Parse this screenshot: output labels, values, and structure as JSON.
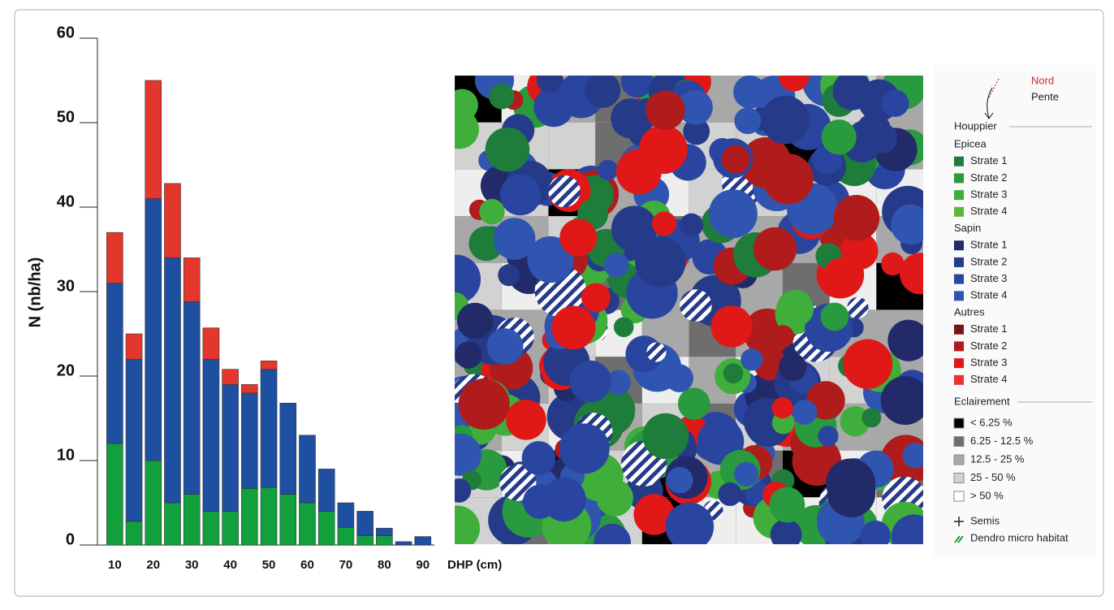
{
  "chart_data": {
    "type": "stacked-bar",
    "y_label": "N (nb/ha)",
    "x_label": "DHP (cm)",
    "x": [
      10,
      15,
      20,
      25,
      30,
      35,
      40,
      45,
      50,
      55,
      60,
      65,
      70,
      75,
      80,
      85,
      90
    ],
    "series": [
      {
        "color": "#12a03c",
        "values": [
          12,
          2.8,
          10,
          5,
          6,
          4,
          4,
          6.7,
          6.8,
          6,
          5,
          4,
          2.1,
          1.1,
          1.1,
          0,
          0
        ]
      },
      {
        "color": "#1f4fa0",
        "values": [
          19,
          19.2,
          31,
          29,
          22.8,
          18,
          15,
          11.3,
          14,
          10.8,
          8,
          5,
          2.9,
          2.9,
          0.9,
          0.4,
          1
        ]
      },
      {
        "color": "#e3362d",
        "values": [
          6,
          3,
          14,
          8.8,
          5.2,
          3.7,
          1.8,
          1,
          1,
          0,
          0,
          0,
          0,
          0,
          0,
          0,
          0
        ]
      }
    ],
    "xlim": [
      5.5,
      93
    ],
    "xticks": [
      10,
      20,
      30,
      40,
      50,
      60,
      70,
      80,
      90
    ],
    "ylim": [
      0,
      60
    ],
    "yticks": [
      0,
      10,
      20,
      30,
      40,
      50,
      60
    ]
  },
  "legend": {
    "north": "Nord",
    "slope": "Pente",
    "crown": {
      "title": "Houppier",
      "groups": [
        {
          "name": "Epicea",
          "items": [
            {
              "label": "Strate 1",
              "color": "#1e7d3a"
            },
            {
              "label": "Strate 2",
              "color": "#2a9a3e"
            },
            {
              "label": "Strate 3",
              "color": "#3fae3a"
            },
            {
              "label": "Strate 4",
              "color": "#5cb83a"
            }
          ]
        },
        {
          "name": "Sapin",
          "items": [
            {
              "label": "Strate 1",
              "color": "#232a6a"
            },
            {
              "label": "Strate 2",
              "color": "#263a8a"
            },
            {
              "label": "Strate 3",
              "color": "#2a45a0"
            },
            {
              "label": "Strate 4",
              "color": "#2f55b0"
            }
          ]
        },
        {
          "name": "Autres",
          "items": [
            {
              "label": "Strate 1",
              "color": "#7a1414"
            },
            {
              "label": "Strate 2",
              "color": "#b01c1c"
            },
            {
              "label": "Strate 3",
              "color": "#e01818"
            },
            {
              "label": "Strate 4",
              "color": "#ee3030"
            }
          ]
        }
      ]
    },
    "light": {
      "title": "Eclairement",
      "items": [
        {
          "label": "< 6.25 %",
          "color": "#000000"
        },
        {
          "label": "6.25 - 12.5 %",
          "color": "#6e6e6e"
        },
        {
          "label": "12.5 - 25 %",
          "color": "#a8a8a8"
        },
        {
          "label": "25 - 50 %",
          "color": "#d2d2d2"
        },
        {
          "label": "> 50 %",
          "color": "#ffffff"
        }
      ]
    },
    "seedling": "Semis",
    "habitat": "Dendro micro habitat"
  }
}
